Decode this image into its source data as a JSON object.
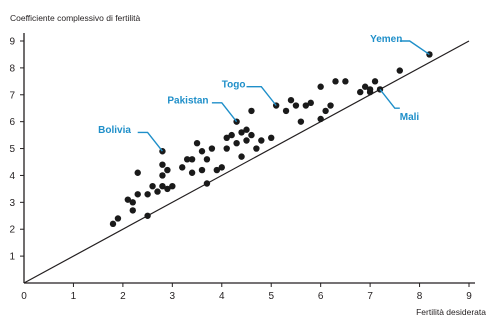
{
  "chart_data": {
    "type": "scatter",
    "title": "",
    "xlabel": "Fertilità desiderata",
    "ylabel": "Coefficiente complessivo di fertilità",
    "xlim": [
      0,
      9
    ],
    "ylim": [
      0,
      9
    ],
    "x_ticks": [
      "0",
      "1",
      "2",
      "3",
      "4",
      "5",
      "6",
      "7",
      "8",
      "9"
    ],
    "y_ticks": [
      "0",
      "1",
      "2",
      "3",
      "4",
      "5",
      "6",
      "7",
      "8",
      "9"
    ],
    "grid": false,
    "reference_line": {
      "from": [
        0,
        0
      ],
      "to": [
        9,
        9
      ]
    },
    "annotation_color": "#1f8fc9",
    "point_color": "#1a1a1a",
    "points": [
      [
        1.8,
        2.2
      ],
      [
        1.9,
        2.4
      ],
      [
        2.1,
        3.1
      ],
      [
        2.2,
        3.0
      ],
      [
        2.2,
        2.7
      ],
      [
        2.3,
        3.3
      ],
      [
        2.3,
        4.1
      ],
      [
        2.5,
        3.3
      ],
      [
        2.5,
        2.5
      ],
      [
        2.6,
        3.6
      ],
      [
        2.7,
        3.4
      ],
      [
        2.8,
        3.6
      ],
      [
        2.8,
        4.0
      ],
      [
        2.8,
        4.4
      ],
      [
        2.9,
        4.2
      ],
      [
        2.9,
        3.5
      ],
      [
        3.0,
        3.6
      ],
      [
        2.8,
        4.9
      ],
      [
        3.2,
        4.3
      ],
      [
        3.3,
        4.6
      ],
      [
        3.4,
        4.1
      ],
      [
        3.4,
        4.6
      ],
      [
        3.5,
        5.2
      ],
      [
        3.6,
        4.2
      ],
      [
        3.6,
        4.9
      ],
      [
        3.7,
        3.7
      ],
      [
        3.7,
        4.6
      ],
      [
        3.8,
        5.0
      ],
      [
        3.9,
        4.2
      ],
      [
        4.0,
        4.3
      ],
      [
        4.1,
        5.0
      ],
      [
        4.1,
        5.4
      ],
      [
        4.2,
        5.5
      ],
      [
        4.3,
        5.2
      ],
      [
        4.3,
        6.0
      ],
      [
        4.4,
        5.6
      ],
      [
        4.4,
        4.7
      ],
      [
        4.5,
        5.7
      ],
      [
        4.5,
        5.3
      ],
      [
        4.6,
        5.5
      ],
      [
        4.6,
        6.4
      ],
      [
        4.7,
        5.0
      ],
      [
        4.8,
        5.3
      ],
      [
        5.0,
        5.4
      ],
      [
        5.1,
        6.6
      ],
      [
        5.3,
        6.4
      ],
      [
        5.4,
        6.8
      ],
      [
        5.5,
        6.6
      ],
      [
        5.6,
        6.0
      ],
      [
        5.7,
        6.6
      ],
      [
        5.8,
        6.7
      ],
      [
        6.0,
        6.1
      ],
      [
        6.0,
        7.3
      ],
      [
        6.1,
        6.4
      ],
      [
        6.2,
        6.6
      ],
      [
        6.3,
        7.5
      ],
      [
        6.5,
        7.5
      ],
      [
        6.8,
        7.1
      ],
      [
        6.9,
        7.3
      ],
      [
        7.0,
        7.2
      ],
      [
        7.1,
        7.5
      ],
      [
        7.2,
        7.2
      ],
      [
        7.0,
        7.1
      ],
      [
        7.6,
        7.9
      ],
      [
        8.2,
        8.5
      ]
    ],
    "annotations": [
      {
        "label": "Yemen",
        "point": [
          8.2,
          8.5
        ],
        "text": [
          7.0,
          9.1
        ],
        "path": [
          [
            7.6,
            9.0
          ],
          [
            7.8,
            9.0
          ],
          [
            8.2,
            8.5
          ]
        ]
      },
      {
        "label": "Togo",
        "point": [
          5.1,
          6.6
        ],
        "text": [
          4.0,
          7.4
        ],
        "path": [
          [
            4.5,
            7.3
          ],
          [
            4.8,
            7.3
          ],
          [
            5.1,
            6.6
          ]
        ]
      },
      {
        "label": "Pakistan",
        "point": [
          4.3,
          6.0
        ],
        "text": [
          2.9,
          6.8
        ],
        "path": [
          [
            3.8,
            6.7
          ],
          [
            4.0,
            6.7
          ],
          [
            4.3,
            6.0
          ]
        ]
      },
      {
        "label": "Bolivia",
        "point": [
          2.8,
          4.9
        ],
        "text": [
          1.5,
          5.7
        ],
        "path": [
          [
            2.3,
            5.6
          ],
          [
            2.5,
            5.6
          ],
          [
            2.8,
            4.9
          ]
        ]
      },
      {
        "label": "Mali",
        "point": [
          7.2,
          7.2
        ],
        "text": [
          7.6,
          6.2
        ],
        "path": [
          [
            7.2,
            7.2
          ],
          [
            7.5,
            6.5
          ],
          [
            7.6,
            6.5
          ]
        ]
      }
    ]
  }
}
